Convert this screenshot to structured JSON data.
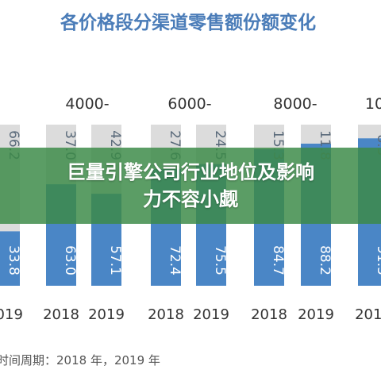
{
  "chart_data": {
    "type": "bar",
    "stacked": true,
    "title": "各价格段分渠道零售额份额变化",
    "price_groups": [
      "",
      "4000-",
      "6000-",
      "8000-",
      "10"
    ],
    "categories": [
      "2019",
      "2018",
      "2019",
      "2018",
      "2019",
      "2018",
      "2019",
      "2018",
      "2019"
    ],
    "series": [
      {
        "values": [
          33.8,
          63.0,
          57.1,
          72.4,
          75.5,
          84.7,
          88.2,
          91.5,
          null
        ]
      },
      {
        "values": [
          66.2,
          37.0,
          42.9,
          27.6,
          24.5,
          15.3,
          11.8,
          8.5,
          null
        ]
      }
    ],
    "value_labels_top": [
      "66.2",
      "37.0",
      "42.9",
      "27.6",
      "24.5",
      "15.3",
      "11.8",
      "8.5",
      ""
    ],
    "value_labels_bottom": [
      "33.8",
      "63.0",
      "57.1",
      "72.4",
      "75.5",
      "84.7",
      "88.2",
      "91.5",
      ""
    ],
    "colors": {
      "bottom": "#4a86c6",
      "top": "#dcdcdc",
      "title": "#4a7cb8"
    },
    "footer": "时间周期：2018 年，2019 年"
  },
  "banner": {
    "line1": "巨量引擎公司行业地位及影响",
    "line2": "力不容小觑",
    "color": "#3c8a48"
  }
}
